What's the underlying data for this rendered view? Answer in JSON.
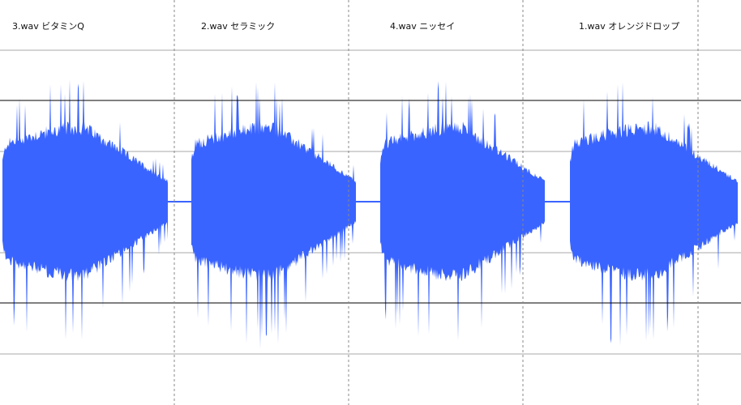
{
  "editor": {
    "waveform_color": "#3a64ff",
    "background_color": "#ffffff",
    "gridline_color": "#aaaaaa",
    "reference_line_color": "#000000",
    "clips": [
      {
        "label": "3.wav ビタミンQ"
      },
      {
        "label": "2.wav セラミック"
      },
      {
        "label": "4.wav ニッセイ"
      },
      {
        "label": "1.wav オレンジドロップ"
      }
    ]
  }
}
